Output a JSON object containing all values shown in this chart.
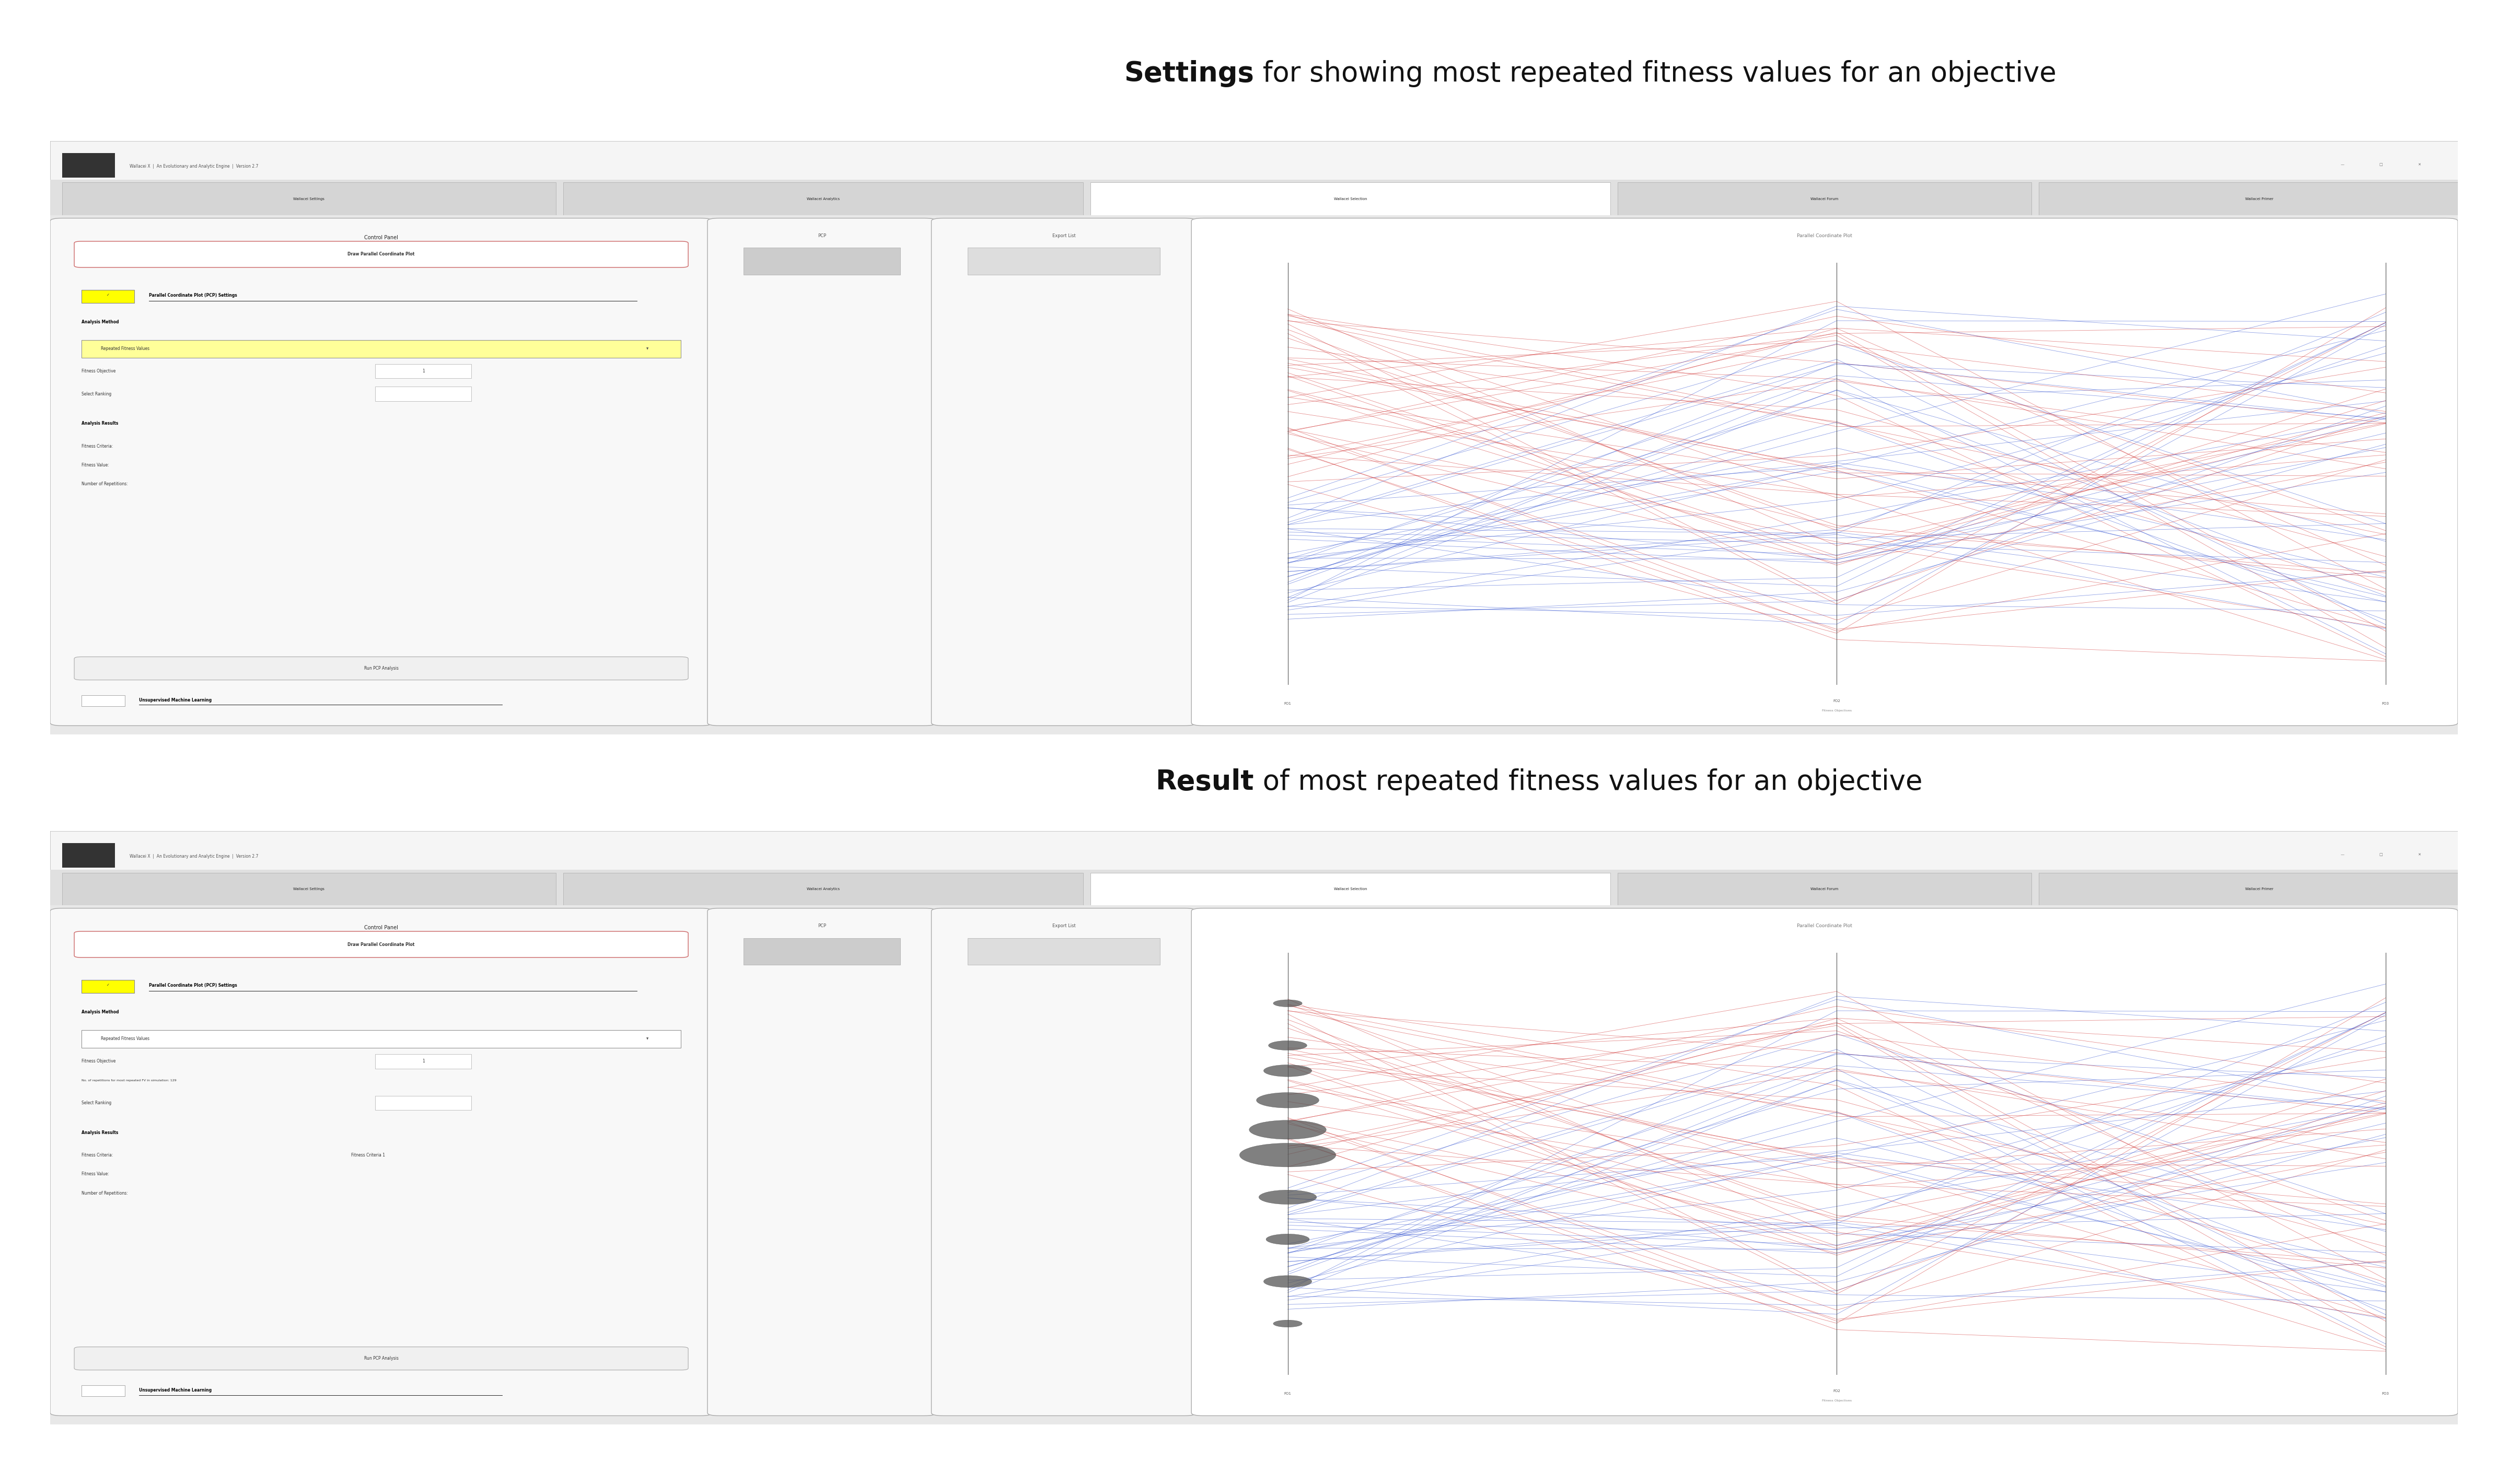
{
  "title1_bold": "Settings",
  "title1_rest": " for showing most repeated fitness values for an objective",
  "title2_bold": "Result",
  "title2_rest": " of most repeated fitness values for an objective",
  "bg_color": "#ffffff",
  "app_title": "Wallacei X  |  An Evolutionary and Analytic Engine  |  Version 2.7",
  "tabs": [
    "Wallacei Settings",
    "Wallacei Analytics",
    "Wallacei Selection",
    "Wallacei Forum",
    "Wallacei Primer"
  ],
  "active_tab": "Wallacei Selection",
  "control_panel_title": "Control Panel",
  "btn_draw": "Draw Parallel Coordinate Plot",
  "pcp_label": "Parallel Coordinate Plot (PCP) Settings",
  "analysis_method_label": "Analysis Method",
  "dropdown_value": "Repeated Fitness Values",
  "fitness_obj_label": "Fitness Objective",
  "fitness_obj_value": "1",
  "select_ranking_label": "Select Ranking",
  "analysis_results_label": "Analysis Results",
  "fitness_criteria_label": "Fitness Criteria:",
  "fitness_value_label": "Fitness Value:",
  "num_rep_label": "Number of Repetitions:",
  "btn_run": "Run PCP Analysis",
  "unsupervised_label": "Unsupervised Machine Learning",
  "pcp_header": "PCP",
  "export_list_header": "Export List",
  "parallel_coord_title": "Parallel Coordinate Plot",
  "fo1_label": "FO1",
  "fo2_label": "FO2",
  "fo2_sub": "Fitness Objectives",
  "fo3_label": "FO3",
  "result_fitness_criteria_value": "Fitness Criteria 1",
  "result_no_rep_text": "No. of repetitions for most repeated FV in simulation: 129"
}
